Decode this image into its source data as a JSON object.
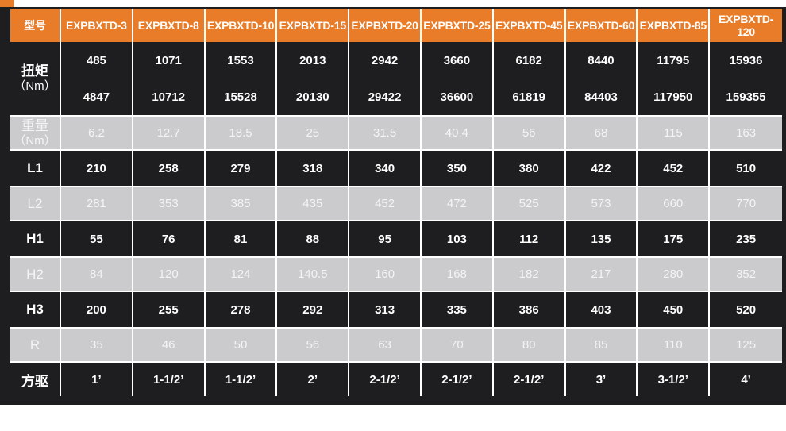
{
  "colors": {
    "accent_orange": "#E87C29",
    "panel_dark": "#1E1E20",
    "row_gray": "#CBCBCE",
    "grid_white": "#FFFFFF"
  },
  "table": {
    "header": {
      "label": "型号",
      "models": [
        "EXPBXTD-3",
        "EXPBXTD-8",
        "EXPBXTD-10",
        "EXPBXTD-15",
        "EXPBXTD-20",
        "EXPBXTD-25",
        "EXPBXTD-45",
        "EXPBXTD-60",
        "EXPBXTD-85",
        "EXPBXTD-120"
      ]
    },
    "torque": {
      "label": "扭矩",
      "unit": "（Nm）",
      "upper": [
        485,
        1071,
        1553,
        2013,
        2942,
        3660,
        6182,
        8440,
        11795,
        15936
      ],
      "lower": [
        4847,
        10712,
        15528,
        20130,
        29422,
        36600,
        61819,
        84403,
        117950,
        159355
      ]
    },
    "rows": [
      {
        "label": "重量",
        "unit": "（Nm）",
        "values": [
          6.2,
          12.7,
          18.5,
          25,
          31.5,
          40.4,
          56,
          68,
          115,
          163
        ]
      },
      {
        "label": "L1",
        "values": [
          210,
          258,
          279,
          318,
          340,
          350,
          380,
          422,
          452,
          510
        ]
      },
      {
        "label": "L2",
        "values": [
          281,
          353,
          385,
          435,
          452,
          472,
          525,
          573,
          660,
          770
        ]
      },
      {
        "label": "H1",
        "values": [
          55,
          76,
          81,
          88,
          95,
          103,
          112,
          135,
          175,
          235
        ]
      },
      {
        "label": "H2",
        "values": [
          84,
          120,
          124,
          140.5,
          160,
          168,
          182,
          217,
          280,
          352
        ]
      },
      {
        "label": "H3",
        "values": [
          200,
          255,
          278,
          292,
          313,
          335,
          386,
          403,
          450,
          520
        ]
      },
      {
        "label": "R",
        "values": [
          35,
          46,
          50,
          56,
          63,
          70,
          80,
          85,
          110,
          125
        ]
      },
      {
        "label": "方驱",
        "values": [
          "1’",
          "1-1/2’",
          "1-1/2’",
          "2’",
          "2-1/2’",
          "2-1/2’",
          "2-1/2’",
          "3’",
          "3-1/2’",
          "4’"
        ]
      }
    ]
  }
}
